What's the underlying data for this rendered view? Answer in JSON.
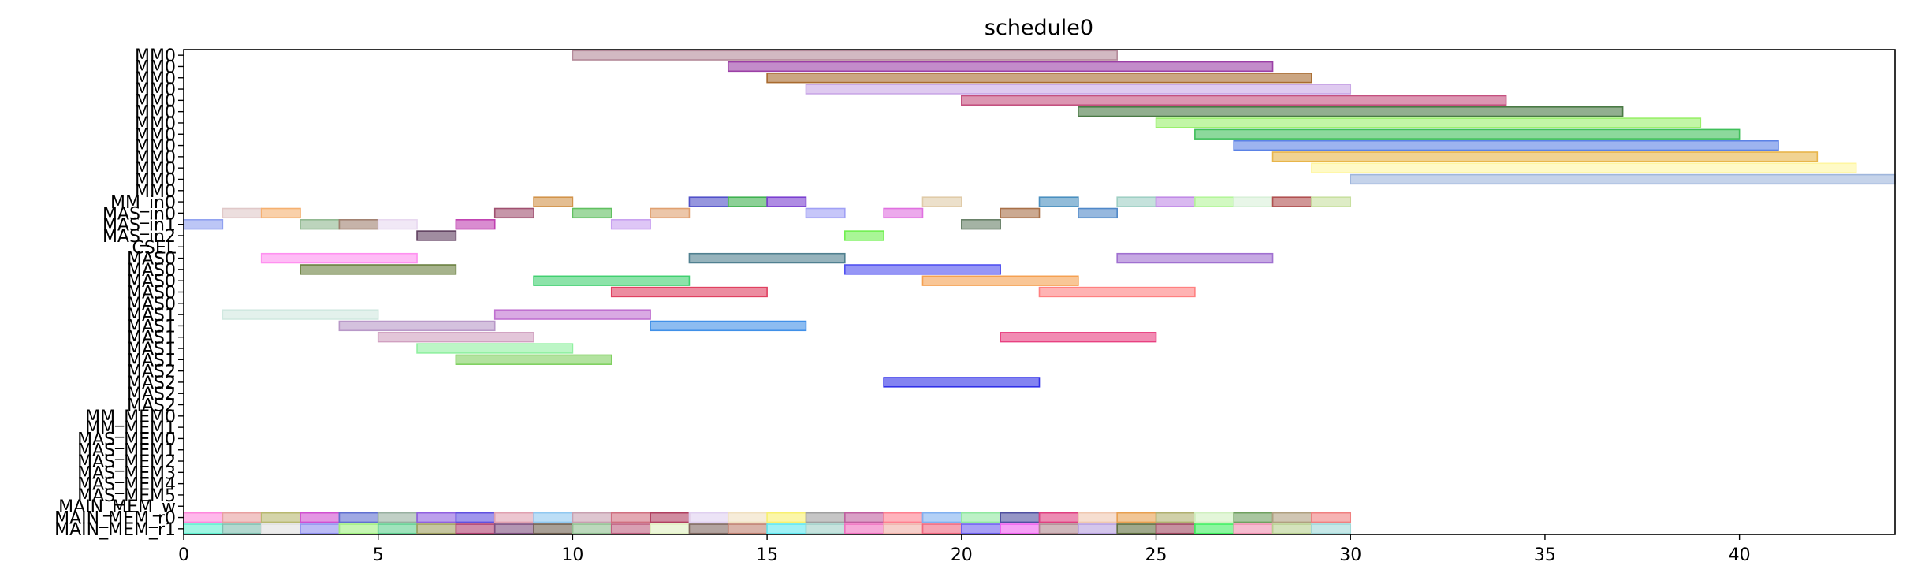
{
  "chart_data": {
    "type": "gantt",
    "title": "schedule0",
    "xlabel": "",
    "ylabel": "",
    "xlim": [
      0,
      44
    ],
    "x_ticks": [
      0,
      5,
      10,
      15,
      20,
      25,
      30,
      35,
      40
    ],
    "grid": false,
    "legend": "none",
    "rows": [
      "MM0",
      "MM0",
      "MM0",
      "MM0",
      "MM0",
      "MM0",
      "MM0",
      "MM0",
      "MM0",
      "MM0",
      "MM0",
      "MM0",
      "MM0",
      "MM_in0",
      "MAS_in0",
      "MAS_in1",
      "MAS_in2",
      "CSEL",
      "MAS0",
      "MAS0",
      "MAS0",
      "MAS0",
      "MAS0",
      "MAS1",
      "MAS1",
      "MAS1",
      "MAS1",
      "MAS1",
      "MAS2",
      "MAS2",
      "MAS2",
      "MAS2",
      "MM_MEM0",
      "MM_MEM1",
      "MAS_MEM0",
      "MAS_MEM1",
      "MAS_MEM2",
      "MAS_MEM3",
      "MAS_MEM4",
      "MAS_MEM5",
      "MAIN_MEM_w",
      "MAIN_MEM_r0",
      "MAIN_MEM_r1"
    ],
    "tasks": [
      {
        "row": 0,
        "start": 10,
        "end": 24,
        "color": "#b48a9a"
      },
      {
        "row": 1,
        "start": 14,
        "end": 28,
        "color": "#9b3fa6"
      },
      {
        "row": 2,
        "start": 15,
        "end": 29,
        "color": "#a86a2e"
      },
      {
        "row": 3,
        "start": 16,
        "end": 30,
        "color": "#c9a7e6"
      },
      {
        "row": 4,
        "start": 20,
        "end": 34,
        "color": "#c4507f"
      },
      {
        "row": 5,
        "start": 23,
        "end": 37,
        "color": "#4a7a45"
      },
      {
        "row": 6,
        "start": 25,
        "end": 39,
        "color": "#99f06a"
      },
      {
        "row": 7,
        "start": 26,
        "end": 40,
        "color": "#3fbf5a"
      },
      {
        "row": 8,
        "start": 27,
        "end": 41,
        "color": "#5b82e6"
      },
      {
        "row": 9,
        "start": 28,
        "end": 42,
        "color": "#e8b54a"
      },
      {
        "row": 10,
        "start": 29,
        "end": 43,
        "color": "#fff6a0"
      },
      {
        "row": 11,
        "start": 30,
        "end": 44,
        "color": "#9fb6dc"
      },
      {
        "row": 13,
        "start": 9,
        "end": 10,
        "color": "#d2934a"
      },
      {
        "row": 13,
        "start": 13,
        "end": 14,
        "color": "#5050c8"
      },
      {
        "row": 13,
        "start": 14,
        "end": 15,
        "color": "#3fb050"
      },
      {
        "row": 13,
        "start": 15,
        "end": 16,
        "color": "#7a3fd0"
      },
      {
        "row": 13,
        "start": 19,
        "end": 20,
        "color": "#e0cba8"
      },
      {
        "row": 13,
        "start": 22,
        "end": 23,
        "color": "#4a8fbf"
      },
      {
        "row": 13,
        "start": 24,
        "end": 25,
        "color": "#9fcfc4"
      },
      {
        "row": 13,
        "start": 25,
        "end": 26,
        "color": "#c08ae6"
      },
      {
        "row": 13,
        "start": 26,
        "end": 27,
        "color": "#b4f59a"
      },
      {
        "row": 13,
        "start": 27,
        "end": 28,
        "color": "#d8f0d8"
      },
      {
        "row": 13,
        "start": 28,
        "end": 29,
        "color": "#b05050"
      },
      {
        "row": 13,
        "start": 29,
        "end": 30,
        "color": "#c8e0a0"
      },
      {
        "row": 14,
        "start": 1,
        "end": 2,
        "color": "#e0c8c8"
      },
      {
        "row": 14,
        "start": 2,
        "end": 3,
        "color": "#f5b070"
      },
      {
        "row": 14,
        "start": 8,
        "end": 9,
        "color": "#a05070"
      },
      {
        "row": 14,
        "start": 10,
        "end": 11,
        "color": "#60c060"
      },
      {
        "row": 14,
        "start": 12,
        "end": 13,
        "color": "#e0a070"
      },
      {
        "row": 14,
        "start": 16,
        "end": 17,
        "color": "#a0a0f5"
      },
      {
        "row": 14,
        "start": 18,
        "end": 19,
        "color": "#e070e0"
      },
      {
        "row": 14,
        "start": 21,
        "end": 22,
        "color": "#a87048"
      },
      {
        "row": 14,
        "start": 23,
        "end": 24,
        "color": "#5088c8"
      },
      {
        "row": 15,
        "start": 0,
        "end": 1,
        "color": "#8fa0f0"
      },
      {
        "row": 15,
        "start": 3,
        "end": 4,
        "color": "#90b890"
      },
      {
        "row": 15,
        "start": 4,
        "end": 5,
        "color": "#a08070"
      },
      {
        "row": 15,
        "start": 5,
        "end": 6,
        "color": "#e8d8f0"
      },
      {
        "row": 15,
        "start": 7,
        "end": 8,
        "color": "#c040b0"
      },
      {
        "row": 15,
        "start": 11,
        "end": 12,
        "color": "#c8a0f0"
      },
      {
        "row": 15,
        "start": 20,
        "end": 21,
        "color": "#688068"
      },
      {
        "row": 16,
        "start": 6,
        "end": 7,
        "color": "#604060"
      },
      {
        "row": 16,
        "start": 17,
        "end": 18,
        "color": "#70f050"
      },
      {
        "row": 18,
        "start": 2,
        "end": 6,
        "color": "#ff90f0"
      },
      {
        "row": 18,
        "start": 13,
        "end": 17,
        "color": "#508090"
      },
      {
        "row": 18,
        "start": 24,
        "end": 28,
        "color": "#a070d0"
      },
      {
        "row": 19,
        "start": 3,
        "end": 7,
        "color": "#6a8040"
      },
      {
        "row": 19,
        "start": 17,
        "end": 21,
        "color": "#5050f0"
      },
      {
        "row": 20,
        "start": 9,
        "end": 13,
        "color": "#40d070"
      },
      {
        "row": 20,
        "start": 19,
        "end": 23,
        "color": "#f5a050"
      },
      {
        "row": 21,
        "start": 11,
        "end": 15,
        "color": "#e04060"
      },
      {
        "row": 21,
        "start": 22,
        "end": 26,
        "color": "#ff8080"
      },
      {
        "row": 23,
        "start": 1,
        "end": 5,
        "color": "#d0e8e0"
      },
      {
        "row": 23,
        "start": 8,
        "end": 12,
        "color": "#c070d0"
      },
      {
        "row": 24,
        "start": 4,
        "end": 8,
        "color": "#b898c8"
      },
      {
        "row": 24,
        "start": 12,
        "end": 16,
        "color": "#4090e8"
      },
      {
        "row": 25,
        "start": 5,
        "end": 9,
        "color": "#d0a0c0"
      },
      {
        "row": 25,
        "start": 21,
        "end": 25,
        "color": "#e84080"
      },
      {
        "row": 26,
        "start": 6,
        "end": 10,
        "color": "#90f0a0"
      },
      {
        "row": 27,
        "start": 7,
        "end": 11,
        "color": "#80d060"
      },
      {
        "row": 29,
        "start": 18,
        "end": 22,
        "color": "#3030e8"
      },
      {
        "row": 41,
        "start": 0,
        "end": 1,
        "color": "#ff88dd"
      },
      {
        "row": 41,
        "start": 1,
        "end": 2,
        "color": "#e8a0a0"
      },
      {
        "row": 41,
        "start": 2,
        "end": 3,
        "color": "#b8b870"
      },
      {
        "row": 41,
        "start": 3,
        "end": 4,
        "color": "#d050d0"
      },
      {
        "row": 41,
        "start": 4,
        "end": 5,
        "color": "#6070d0"
      },
      {
        "row": 41,
        "start": 5,
        "end": 6,
        "color": "#98b0a0"
      },
      {
        "row": 41,
        "start": 6,
        "end": 7,
        "color": "#9060e0"
      },
      {
        "row": 41,
        "start": 7,
        "end": 8,
        "color": "#6050e0"
      },
      {
        "row": 41,
        "start": 8,
        "end": 9,
        "color": "#e0a0b0"
      },
      {
        "row": 41,
        "start": 9,
        "end": 10,
        "color": "#90c8f0"
      },
      {
        "row": 41,
        "start": 10,
        "end": 11,
        "color": "#c8a0b0"
      },
      {
        "row": 41,
        "start": 11,
        "end": 12,
        "color": "#d07080"
      },
      {
        "row": 41,
        "start": 12,
        "end": 13,
        "color": "#b04060"
      },
      {
        "row": 41,
        "start": 13,
        "end": 14,
        "color": "#e0d0f0"
      },
      {
        "row": 41,
        "start": 14,
        "end": 15,
        "color": "#f0e0c0"
      },
      {
        "row": 41,
        "start": 15,
        "end": 16,
        "color": "#f8f070"
      },
      {
        "row": 41,
        "start": 16,
        "end": 17,
        "color": "#a0a0a0"
      },
      {
        "row": 41,
        "start": 17,
        "end": 18,
        "color": "#c060a0"
      },
      {
        "row": 41,
        "start": 18,
        "end": 19,
        "color": "#ff8090"
      },
      {
        "row": 41,
        "start": 19,
        "end": 20,
        "color": "#80b0f0"
      },
      {
        "row": 41,
        "start": 20,
        "end": 21,
        "color": "#90e8a0"
      },
      {
        "row": 41,
        "start": 21,
        "end": 22,
        "color": "#5050a0"
      },
      {
        "row": 41,
        "start": 22,
        "end": 23,
        "color": "#e04080"
      },
      {
        "row": 41,
        "start": 23,
        "end": 24,
        "color": "#f0c8b0"
      },
      {
        "row": 41,
        "start": 24,
        "end": 25,
        "color": "#e8a050"
      },
      {
        "row": 41,
        "start": 25,
        "end": 26,
        "color": "#b0b070"
      },
      {
        "row": 41,
        "start": 26,
        "end": 27,
        "color": "#d0f0c0"
      },
      {
        "row": 41,
        "start": 27,
        "end": 28,
        "color": "#70a060"
      },
      {
        "row": 41,
        "start": 28,
        "end": 29,
        "color": "#b0a080"
      },
      {
        "row": 41,
        "start": 29,
        "end": 30,
        "color": "#f08080"
      },
      {
        "row": 42,
        "start": 0,
        "end": 1,
        "color": "#60f0d0"
      },
      {
        "row": 42,
        "start": 1,
        "end": 2,
        "color": "#80c0b0"
      },
      {
        "row": 42,
        "start": 2,
        "end": 3,
        "color": "#e0e0e0"
      },
      {
        "row": 42,
        "start": 3,
        "end": 4,
        "color": "#9090f0"
      },
      {
        "row": 42,
        "start": 4,
        "end": 5,
        "color": "#a0f080"
      },
      {
        "row": 42,
        "start": 5,
        "end": 6,
        "color": "#60d090"
      },
      {
        "row": 42,
        "start": 6,
        "end": 7,
        "color": "#a0a060"
      },
      {
        "row": 42,
        "start": 7,
        "end": 8,
        "color": "#b04070"
      },
      {
        "row": 42,
        "start": 8,
        "end": 9,
        "color": "#805080"
      },
      {
        "row": 42,
        "start": 9,
        "end": 10,
        "color": "#706050"
      },
      {
        "row": 42,
        "start": 10,
        "end": 11,
        "color": "#90c090"
      },
      {
        "row": 42,
        "start": 11,
        "end": 12,
        "color": "#c06080"
      },
      {
        "row": 42,
        "start": 12,
        "end": 13,
        "color": "#e0f0c0"
      },
      {
        "row": 42,
        "start": 13,
        "end": 14,
        "color": "#806860"
      },
      {
        "row": 42,
        "start": 14,
        "end": 15,
        "color": "#c08070"
      },
      {
        "row": 42,
        "start": 15,
        "end": 16,
        "color": "#60e8f0"
      },
      {
        "row": 42,
        "start": 16,
        "end": 17,
        "color": "#a0d0c8"
      },
      {
        "row": 42,
        "start": 17,
        "end": 18,
        "color": "#f070c0"
      },
      {
        "row": 42,
        "start": 18,
        "end": 19,
        "color": "#f0b0a8"
      },
      {
        "row": 42,
        "start": 19,
        "end": 20,
        "color": "#f06880"
      },
      {
        "row": 42,
        "start": 20,
        "end": 21,
        "color": "#7060f0"
      },
      {
        "row": 42,
        "start": 21,
        "end": 22,
        "color": "#f060f0"
      },
      {
        "row": 42,
        "start": 22,
        "end": 23,
        "color": "#b08890"
      },
      {
        "row": 42,
        "start": 23,
        "end": 24,
        "color": "#b8a0e0"
      },
      {
        "row": 42,
        "start": 24,
        "end": 25,
        "color": "#607040"
      },
      {
        "row": 42,
        "start": 25,
        "end": 26,
        "color": "#a04860"
      },
      {
        "row": 42,
        "start": 26,
        "end": 27,
        "color": "#40f060"
      },
      {
        "row": 42,
        "start": 27,
        "end": 28,
        "color": "#f090b0"
      },
      {
        "row": 42,
        "start": 28,
        "end": 29,
        "color": "#b8d090"
      },
      {
        "row": 42,
        "start": 29,
        "end": 30,
        "color": "#a0d8d8"
      }
    ]
  }
}
